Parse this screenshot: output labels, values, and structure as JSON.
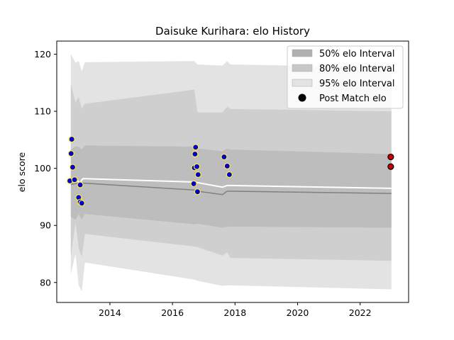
{
  "chart_data": {
    "type": "area",
    "title": "Daisuke Kurihara: elo History",
    "xlabel": "",
    "ylabel": "elo score",
    "xlim": [
      2012.3,
      2023.55
    ],
    "ylim": [
      76.5,
      122.3
    ],
    "xticks": [
      2014,
      2016,
      2018,
      2020,
      2022
    ],
    "yticks": [
      80,
      90,
      100,
      110,
      120
    ],
    "grid": false,
    "legend_position": "top-right",
    "legend": [
      {
        "label": "50% elo Interval",
        "color": "#b0b0b0"
      },
      {
        "label": "80% elo Interval",
        "color": "#c8c8c8"
      },
      {
        "label": "95% elo Interval",
        "color": "#e3e3e3"
      },
      {
        "label": "Post Match elo",
        "color": "#000000"
      }
    ],
    "band_95": {
      "x": [
        2012.75,
        2012.9,
        2013.0,
        2013.1,
        2013.2,
        2016.7,
        2016.8,
        2017.6,
        2017.75,
        2017.85,
        2023.0
      ],
      "upper": [
        120.0,
        118.5,
        118.8,
        117.0,
        118.6,
        118.8,
        118.2,
        118.0,
        118.8,
        118.2,
        117.7
      ],
      "lower": [
        81.5,
        85.0,
        79.5,
        78.5,
        83.5,
        80.5,
        80.3,
        79.4,
        79.5,
        79.5,
        78.8
      ]
    },
    "band_80": {
      "x": [
        2012.75,
        2012.9,
        2013.0,
        2013.1,
        2013.2,
        2016.7,
        2016.8,
        2017.6,
        2017.75,
        2017.85,
        2023.0
      ],
      "upper": [
        114.8,
        111.5,
        112.5,
        110.5,
        111.3,
        113.8,
        109.8,
        109.8,
        110.8,
        110.4,
        110.0
      ],
      "lower": [
        84.5,
        90.5,
        86.0,
        84.5,
        88.5,
        86.3,
        86.2,
        84.7,
        85.3,
        84.3,
        83.8
      ]
    },
    "band_50": {
      "x": [
        2012.75,
        2012.9,
        2013.0,
        2013.1,
        2013.2,
        2016.7,
        2016.8,
        2017.6,
        2017.75,
        2017.85,
        2023.0
      ],
      "upper": [
        103.3,
        103.8,
        103.8,
        103.3,
        104.0,
        103.8,
        103.5,
        103.0,
        103.5,
        103.3,
        102.5
      ],
      "lower": [
        91.5,
        91.0,
        92.0,
        91.0,
        92.0,
        90.2,
        90.3,
        89.6,
        89.8,
        89.8,
        89.6
      ]
    },
    "mean_line": {
      "x": [
        2012.75,
        2012.9,
        2013.0,
        2013.1,
        2013.2,
        2016.7,
        2016.8,
        2017.6,
        2017.75,
        2017.85,
        2023.0
      ],
      "y": [
        97.2,
        97.3,
        97.4,
        97.4,
        97.4,
        96.2,
        96.0,
        95.4,
        96.0,
        96.0,
        95.6
      ]
    },
    "white_line": {
      "x": [
        2012.75,
        2012.85,
        2012.95,
        2013.05,
        2013.1,
        2013.15,
        2016.7,
        2016.8,
        2017.6,
        2017.75,
        2017.85,
        2023.0
      ],
      "y": [
        97.6,
        97.8,
        97.9,
        97.4,
        98.0,
        98.2,
        97.6,
        97.5,
        96.7,
        97.0,
        97.0,
        96.5
      ]
    },
    "points": [
      {
        "x": 2012.72,
        "y": 97.8,
        "fill": "#0000cc",
        "edge": "#ffeb3b"
      },
      {
        "x": 2012.78,
        "y": 105.1,
        "fill": "#0000cc",
        "edge": "#ffeb3b"
      },
      {
        "x": 2012.76,
        "y": 102.6,
        "fill": "#0000cc",
        "edge": "#ffeb3b"
      },
      {
        "x": 2012.81,
        "y": 100.2,
        "fill": "#0000cc",
        "edge": "#ffeb3b"
      },
      {
        "x": 2012.87,
        "y": 98.0,
        "fill": "#0000cc",
        "edge": "#ffeb3b"
      },
      {
        "x": 2013.0,
        "y": 94.9,
        "fill": "#0000cc",
        "edge": "#ffeb3b"
      },
      {
        "x": 2013.05,
        "y": 94.1,
        "fill": "#0000cc",
        "edge": "#ffeb3b"
      },
      {
        "x": 2013.1,
        "y": 93.9,
        "fill": "#0000cc",
        "edge": "#ffeb3b"
      },
      {
        "x": 2013.05,
        "y": 97.1,
        "fill": "#0000cc",
        "edge": "#ffeb3b"
      },
      {
        "x": 2016.68,
        "y": 97.3,
        "fill": "#0000cc",
        "edge": "#ffeb3b"
      },
      {
        "x": 2016.7,
        "y": 100.1,
        "fill": "#0000cc",
        "edge": "#ffeb3b"
      },
      {
        "x": 2016.72,
        "y": 102.5,
        "fill": "#0000cc",
        "edge": "#ffeb3b"
      },
      {
        "x": 2016.74,
        "y": 103.7,
        "fill": "#0000cc",
        "edge": "#ffeb3b"
      },
      {
        "x": 2016.78,
        "y": 100.3,
        "fill": "#0000cc",
        "edge": "#ffeb3b"
      },
      {
        "x": 2016.82,
        "y": 98.9,
        "fill": "#0000cc",
        "edge": "#ffeb3b"
      },
      {
        "x": 2016.8,
        "y": 95.9,
        "fill": "#0000cc",
        "edge": "#ffeb3b"
      },
      {
        "x": 2017.65,
        "y": 102.0,
        "fill": "#0000cc",
        "edge": "#ffeb3b"
      },
      {
        "x": 2017.75,
        "y": 100.4,
        "fill": "#0000cc",
        "edge": "#ffeb3b"
      },
      {
        "x": 2017.82,
        "y": 98.9,
        "fill": "#0000cc",
        "edge": "#ffeb3b"
      },
      {
        "x": 2022.98,
        "y": 102.0,
        "fill": "#cc0000",
        "edge": "#000000"
      },
      {
        "x": 2022.98,
        "y": 100.3,
        "fill": "#cc0000",
        "edge": "#000000"
      }
    ]
  }
}
